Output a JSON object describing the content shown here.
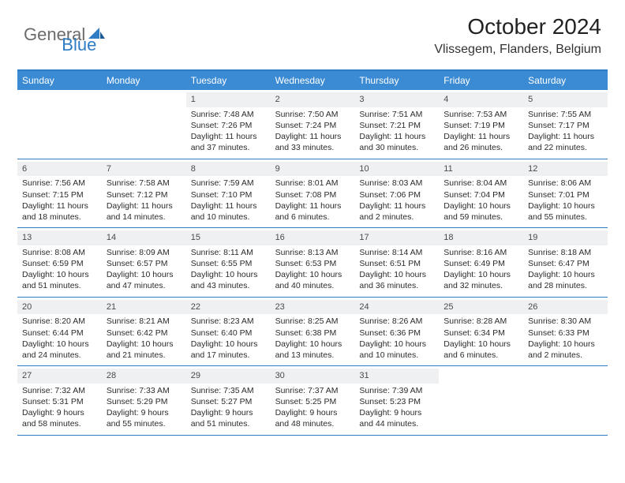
{
  "brand": {
    "part1": "General",
    "part2": "Blue"
  },
  "title": "October 2024",
  "location": "Vlissegem, Flanders, Belgium",
  "colors": {
    "header_bg": "#3b8bd4",
    "border": "#2e7cc4",
    "daynum_bg": "#eef0f2",
    "text": "#2b2b2b",
    "logo_gray": "#6b6b6b",
    "logo_blue": "#2e7cc4"
  },
  "day_names": [
    "Sunday",
    "Monday",
    "Tuesday",
    "Wednesday",
    "Thursday",
    "Friday",
    "Saturday"
  ],
  "weeks": [
    [
      null,
      null,
      {
        "n": "1",
        "sr": "Sunrise: 7:48 AM",
        "ss": "Sunset: 7:26 PM",
        "d1": "Daylight: 11 hours",
        "d2": "and 37 minutes."
      },
      {
        "n": "2",
        "sr": "Sunrise: 7:50 AM",
        "ss": "Sunset: 7:24 PM",
        "d1": "Daylight: 11 hours",
        "d2": "and 33 minutes."
      },
      {
        "n": "3",
        "sr": "Sunrise: 7:51 AM",
        "ss": "Sunset: 7:21 PM",
        "d1": "Daylight: 11 hours",
        "d2": "and 30 minutes."
      },
      {
        "n": "4",
        "sr": "Sunrise: 7:53 AM",
        "ss": "Sunset: 7:19 PM",
        "d1": "Daylight: 11 hours",
        "d2": "and 26 minutes."
      },
      {
        "n": "5",
        "sr": "Sunrise: 7:55 AM",
        "ss": "Sunset: 7:17 PM",
        "d1": "Daylight: 11 hours",
        "d2": "and 22 minutes."
      }
    ],
    [
      {
        "n": "6",
        "sr": "Sunrise: 7:56 AM",
        "ss": "Sunset: 7:15 PM",
        "d1": "Daylight: 11 hours",
        "d2": "and 18 minutes."
      },
      {
        "n": "7",
        "sr": "Sunrise: 7:58 AM",
        "ss": "Sunset: 7:12 PM",
        "d1": "Daylight: 11 hours",
        "d2": "and 14 minutes."
      },
      {
        "n": "8",
        "sr": "Sunrise: 7:59 AM",
        "ss": "Sunset: 7:10 PM",
        "d1": "Daylight: 11 hours",
        "d2": "and 10 minutes."
      },
      {
        "n": "9",
        "sr": "Sunrise: 8:01 AM",
        "ss": "Sunset: 7:08 PM",
        "d1": "Daylight: 11 hours",
        "d2": "and 6 minutes."
      },
      {
        "n": "10",
        "sr": "Sunrise: 8:03 AM",
        "ss": "Sunset: 7:06 PM",
        "d1": "Daylight: 11 hours",
        "d2": "and 2 minutes."
      },
      {
        "n": "11",
        "sr": "Sunrise: 8:04 AM",
        "ss": "Sunset: 7:04 PM",
        "d1": "Daylight: 10 hours",
        "d2": "and 59 minutes."
      },
      {
        "n": "12",
        "sr": "Sunrise: 8:06 AM",
        "ss": "Sunset: 7:01 PM",
        "d1": "Daylight: 10 hours",
        "d2": "and 55 minutes."
      }
    ],
    [
      {
        "n": "13",
        "sr": "Sunrise: 8:08 AM",
        "ss": "Sunset: 6:59 PM",
        "d1": "Daylight: 10 hours",
        "d2": "and 51 minutes."
      },
      {
        "n": "14",
        "sr": "Sunrise: 8:09 AM",
        "ss": "Sunset: 6:57 PM",
        "d1": "Daylight: 10 hours",
        "d2": "and 47 minutes."
      },
      {
        "n": "15",
        "sr": "Sunrise: 8:11 AM",
        "ss": "Sunset: 6:55 PM",
        "d1": "Daylight: 10 hours",
        "d2": "and 43 minutes."
      },
      {
        "n": "16",
        "sr": "Sunrise: 8:13 AM",
        "ss": "Sunset: 6:53 PM",
        "d1": "Daylight: 10 hours",
        "d2": "and 40 minutes."
      },
      {
        "n": "17",
        "sr": "Sunrise: 8:14 AM",
        "ss": "Sunset: 6:51 PM",
        "d1": "Daylight: 10 hours",
        "d2": "and 36 minutes."
      },
      {
        "n": "18",
        "sr": "Sunrise: 8:16 AM",
        "ss": "Sunset: 6:49 PM",
        "d1": "Daylight: 10 hours",
        "d2": "and 32 minutes."
      },
      {
        "n": "19",
        "sr": "Sunrise: 8:18 AM",
        "ss": "Sunset: 6:47 PM",
        "d1": "Daylight: 10 hours",
        "d2": "and 28 minutes."
      }
    ],
    [
      {
        "n": "20",
        "sr": "Sunrise: 8:20 AM",
        "ss": "Sunset: 6:44 PM",
        "d1": "Daylight: 10 hours",
        "d2": "and 24 minutes."
      },
      {
        "n": "21",
        "sr": "Sunrise: 8:21 AM",
        "ss": "Sunset: 6:42 PM",
        "d1": "Daylight: 10 hours",
        "d2": "and 21 minutes."
      },
      {
        "n": "22",
        "sr": "Sunrise: 8:23 AM",
        "ss": "Sunset: 6:40 PM",
        "d1": "Daylight: 10 hours",
        "d2": "and 17 minutes."
      },
      {
        "n": "23",
        "sr": "Sunrise: 8:25 AM",
        "ss": "Sunset: 6:38 PM",
        "d1": "Daylight: 10 hours",
        "d2": "and 13 minutes."
      },
      {
        "n": "24",
        "sr": "Sunrise: 8:26 AM",
        "ss": "Sunset: 6:36 PM",
        "d1": "Daylight: 10 hours",
        "d2": "and 10 minutes."
      },
      {
        "n": "25",
        "sr": "Sunrise: 8:28 AM",
        "ss": "Sunset: 6:34 PM",
        "d1": "Daylight: 10 hours",
        "d2": "and 6 minutes."
      },
      {
        "n": "26",
        "sr": "Sunrise: 8:30 AM",
        "ss": "Sunset: 6:33 PM",
        "d1": "Daylight: 10 hours",
        "d2": "and 2 minutes."
      }
    ],
    [
      {
        "n": "27",
        "sr": "Sunrise: 7:32 AM",
        "ss": "Sunset: 5:31 PM",
        "d1": "Daylight: 9 hours",
        "d2": "and 58 minutes."
      },
      {
        "n": "28",
        "sr": "Sunrise: 7:33 AM",
        "ss": "Sunset: 5:29 PM",
        "d1": "Daylight: 9 hours",
        "d2": "and 55 minutes."
      },
      {
        "n": "29",
        "sr": "Sunrise: 7:35 AM",
        "ss": "Sunset: 5:27 PM",
        "d1": "Daylight: 9 hours",
        "d2": "and 51 minutes."
      },
      {
        "n": "30",
        "sr": "Sunrise: 7:37 AM",
        "ss": "Sunset: 5:25 PM",
        "d1": "Daylight: 9 hours",
        "d2": "and 48 minutes."
      },
      {
        "n": "31",
        "sr": "Sunrise: 7:39 AM",
        "ss": "Sunset: 5:23 PM",
        "d1": "Daylight: 9 hours",
        "d2": "and 44 minutes."
      },
      null,
      null
    ]
  ]
}
